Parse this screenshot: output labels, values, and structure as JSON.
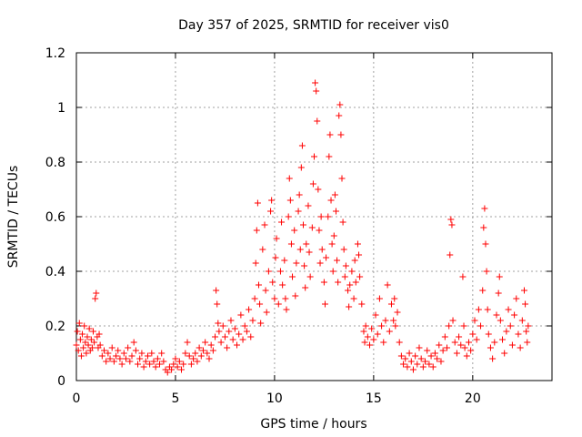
{
  "chart_data": {
    "type": "scatter",
    "title": "Day 357 of 2025, SRMTID for receiver vis0",
    "xlabel": "GPS time / hours",
    "ylabel": "SRMTID / TECUs",
    "xlim": [
      0,
      24
    ],
    "ylim": [
      0,
      1.2
    ],
    "xticks": [
      0,
      5,
      10,
      15,
      20
    ],
    "xtick_labels": [
      "0",
      "5",
      "10",
      "15",
      "20"
    ],
    "yticks": [
      0,
      0.2,
      0.4,
      0.6,
      0.8,
      1,
      1.2
    ],
    "ytick_labels": [
      "0",
      "0.2",
      "0.4",
      "0.6",
      "0.8",
      "1",
      "1.2"
    ],
    "grid": true,
    "marker": "+",
    "marker_color": "#ff0000",
    "series": [
      {
        "name": "SRMTID",
        "points": [
          [
            0.0,
            0.13
          ],
          [
            0.05,
            0.18
          ],
          [
            0.1,
            0.11
          ],
          [
            0.15,
            0.21
          ],
          [
            0.2,
            0.15
          ],
          [
            0.25,
            0.09
          ],
          [
            0.3,
            0.17
          ],
          [
            0.35,
            0.12
          ],
          [
            0.4,
            0.2
          ],
          [
            0.45,
            0.14
          ],
          [
            0.5,
            0.1
          ],
          [
            0.55,
            0.16
          ],
          [
            0.6,
            0.13
          ],
          [
            0.65,
            0.19
          ],
          [
            0.7,
            0.11
          ],
          [
            0.75,
            0.15
          ],
          [
            0.8,
            0.12
          ],
          [
            0.85,
            0.18
          ],
          [
            0.9,
            0.14
          ],
          [
            0.95,
            0.3
          ],
          [
            1.0,
            0.32
          ],
          [
            1.05,
            0.16
          ],
          [
            1.1,
            0.12
          ],
          [
            1.15,
            0.17
          ],
          [
            1.2,
            0.13
          ],
          [
            1.3,
            0.09
          ],
          [
            1.4,
            0.11
          ],
          [
            1.5,
            0.07
          ],
          [
            1.6,
            0.1
          ],
          [
            1.7,
            0.08
          ],
          [
            1.8,
            0.12
          ],
          [
            1.9,
            0.07
          ],
          [
            2.0,
            0.09
          ],
          [
            2.1,
            0.11
          ],
          [
            2.2,
            0.08
          ],
          [
            2.3,
            0.06
          ],
          [
            2.4,
            0.1
          ],
          [
            2.5,
            0.08
          ],
          [
            2.6,
            0.12
          ],
          [
            2.7,
            0.07
          ],
          [
            2.8,
            0.09
          ],
          [
            2.9,
            0.14
          ],
          [
            3.0,
            0.11
          ],
          [
            3.1,
            0.06
          ],
          [
            3.2,
            0.08
          ],
          [
            3.3,
            0.1
          ],
          [
            3.4,
            0.05
          ],
          [
            3.5,
            0.07
          ],
          [
            3.6,
            0.09
          ],
          [
            3.7,
            0.06
          ],
          [
            3.8,
            0.1
          ],
          [
            3.9,
            0.07
          ],
          [
            4.0,
            0.05
          ],
          [
            4.1,
            0.08
          ],
          [
            4.2,
            0.06
          ],
          [
            4.3,
            0.1
          ],
          [
            4.4,
            0.07
          ],
          [
            4.5,
            0.04
          ],
          [
            4.6,
            0.03
          ],
          [
            4.7,
            0.05
          ],
          [
            4.8,
            0.04
          ],
          [
            4.9,
            0.06
          ],
          [
            5.0,
            0.08
          ],
          [
            5.1,
            0.05
          ],
          [
            5.2,
            0.07
          ],
          [
            5.3,
            0.04
          ],
          [
            5.4,
            0.06
          ],
          [
            5.5,
            0.1
          ],
          [
            5.6,
            0.14
          ],
          [
            5.7,
            0.09
          ],
          [
            5.8,
            0.06
          ],
          [
            5.9,
            0.08
          ],
          [
            6.0,
            0.1
          ],
          [
            6.1,
            0.07
          ],
          [
            6.2,
            0.12
          ],
          [
            6.3,
            0.09
          ],
          [
            6.4,
            0.11
          ],
          [
            6.5,
            0.14
          ],
          [
            6.6,
            0.1
          ],
          [
            6.7,
            0.08
          ],
          [
            6.8,
            0.13
          ],
          [
            6.9,
            0.11
          ],
          [
            7.0,
            0.16
          ],
          [
            7.05,
            0.33
          ],
          [
            7.1,
            0.28
          ],
          [
            7.15,
            0.21
          ],
          [
            7.2,
            0.18
          ],
          [
            7.3,
            0.14
          ],
          [
            7.4,
            0.2
          ],
          [
            7.5,
            0.16
          ],
          [
            7.6,
            0.12
          ],
          [
            7.7,
            0.18
          ],
          [
            7.8,
            0.22
          ],
          [
            7.9,
            0.15
          ],
          [
            8.0,
            0.19
          ],
          [
            8.1,
            0.13
          ],
          [
            8.2,
            0.17
          ],
          [
            8.3,
            0.24
          ],
          [
            8.4,
            0.15
          ],
          [
            8.5,
            0.2
          ],
          [
            8.6,
            0.18
          ],
          [
            8.7,
            0.26
          ],
          [
            8.8,
            0.16
          ],
          [
            8.9,
            0.22
          ],
          [
            9.0,
            0.3
          ],
          [
            9.05,
            0.43
          ],
          [
            9.1,
            0.55
          ],
          [
            9.15,
            0.65
          ],
          [
            9.2,
            0.35
          ],
          [
            9.25,
            0.28
          ],
          [
            9.3,
            0.21
          ],
          [
            9.4,
            0.48
          ],
          [
            9.5,
            0.57
          ],
          [
            9.55,
            0.33
          ],
          [
            9.6,
            0.25
          ],
          [
            9.7,
            0.4
          ],
          [
            9.8,
            0.62
          ],
          [
            9.85,
            0.66
          ],
          [
            9.9,
            0.36
          ],
          [
            10.0,
            0.3
          ],
          [
            10.05,
            0.45
          ],
          [
            10.1,
            0.52
          ],
          [
            10.2,
            0.28
          ],
          [
            10.3,
            0.4
          ],
          [
            10.35,
            0.58
          ],
          [
            10.4,
            0.35
          ],
          [
            10.5,
            0.44
          ],
          [
            10.55,
            0.3
          ],
          [
            10.6,
            0.26
          ],
          [
            10.7,
            0.6
          ],
          [
            10.75,
            0.74
          ],
          [
            10.8,
            0.66
          ],
          [
            10.85,
            0.5
          ],
          [
            10.9,
            0.38
          ],
          [
            11.0,
            0.55
          ],
          [
            11.05,
            0.31
          ],
          [
            11.1,
            0.43
          ],
          [
            11.2,
            0.62
          ],
          [
            11.25,
            0.68
          ],
          [
            11.3,
            0.48
          ],
          [
            11.35,
            0.78
          ],
          [
            11.4,
            0.86
          ],
          [
            11.45,
            0.57
          ],
          [
            11.5,
            0.42
          ],
          [
            11.55,
            0.34
          ],
          [
            11.6,
            0.5
          ],
          [
            11.7,
            0.64
          ],
          [
            11.75,
            0.47
          ],
          [
            11.8,
            0.38
          ],
          [
            11.9,
            0.56
          ],
          [
            11.95,
            0.72
          ],
          [
            12.0,
            0.82
          ],
          [
            12.05,
            1.09
          ],
          [
            12.1,
            1.06
          ],
          [
            12.15,
            0.95
          ],
          [
            12.2,
            0.7
          ],
          [
            12.25,
            0.55
          ],
          [
            12.3,
            0.43
          ],
          [
            12.35,
            0.6
          ],
          [
            12.4,
            0.48
          ],
          [
            12.5,
            0.36
          ],
          [
            12.55,
            0.28
          ],
          [
            12.6,
            0.45
          ],
          [
            12.7,
            0.6
          ],
          [
            12.75,
            0.82
          ],
          [
            12.8,
            0.9
          ],
          [
            12.85,
            0.66
          ],
          [
            12.9,
            0.5
          ],
          [
            12.95,
            0.4
          ],
          [
            13.0,
            0.53
          ],
          [
            13.05,
            0.68
          ],
          [
            13.1,
            0.62
          ],
          [
            13.15,
            0.44
          ],
          [
            13.2,
            0.36
          ],
          [
            13.25,
            0.97
          ],
          [
            13.3,
            1.01
          ],
          [
            13.35,
            0.9
          ],
          [
            13.4,
            0.74
          ],
          [
            13.45,
            0.58
          ],
          [
            13.5,
            0.48
          ],
          [
            13.55,
            0.38
          ],
          [
            13.6,
            0.42
          ],
          [
            13.7,
            0.33
          ],
          [
            13.75,
            0.27
          ],
          [
            13.8,
            0.35
          ],
          [
            13.9,
            0.4
          ],
          [
            14.0,
            0.3
          ],
          [
            14.05,
            0.44
          ],
          [
            14.1,
            0.36
          ],
          [
            14.2,
            0.5
          ],
          [
            14.25,
            0.46
          ],
          [
            14.3,
            0.38
          ],
          [
            14.4,
            0.28
          ],
          [
            14.5,
            0.18
          ],
          [
            14.55,
            0.14
          ],
          [
            14.6,
            0.2
          ],
          [
            14.7,
            0.16
          ],
          [
            14.8,
            0.13
          ],
          [
            14.9,
            0.19
          ],
          [
            15.0,
            0.15
          ],
          [
            15.1,
            0.24
          ],
          [
            15.2,
            0.17
          ],
          [
            15.3,
            0.3
          ],
          [
            15.4,
            0.2
          ],
          [
            15.5,
            0.14
          ],
          [
            15.6,
            0.22
          ],
          [
            15.7,
            0.35
          ],
          [
            15.8,
            0.18
          ],
          [
            15.9,
            0.28
          ],
          [
            16.0,
            0.22
          ],
          [
            16.05,
            0.3
          ],
          [
            16.1,
            0.2
          ],
          [
            16.2,
            0.25
          ],
          [
            16.3,
            0.14
          ],
          [
            16.4,
            0.09
          ],
          [
            16.5,
            0.06
          ],
          [
            16.6,
            0.08
          ],
          [
            16.7,
            0.05
          ],
          [
            16.8,
            0.1
          ],
          [
            16.9,
            0.07
          ],
          [
            17.0,
            0.04
          ],
          [
            17.1,
            0.09
          ],
          [
            17.2,
            0.06
          ],
          [
            17.3,
            0.12
          ],
          [
            17.4,
            0.08
          ],
          [
            17.5,
            0.05
          ],
          [
            17.6,
            0.07
          ],
          [
            17.7,
            0.11
          ],
          [
            17.8,
            0.06
          ],
          [
            17.9,
            0.09
          ],
          [
            18.0,
            0.05
          ],
          [
            18.1,
            0.1
          ],
          [
            18.2,
            0.08
          ],
          [
            18.3,
            0.13
          ],
          [
            18.4,
            0.07
          ],
          [
            18.5,
            0.11
          ],
          [
            18.6,
            0.16
          ],
          [
            18.7,
            0.12
          ],
          [
            18.8,
            0.2
          ],
          [
            18.85,
            0.46
          ],
          [
            18.9,
            0.59
          ],
          [
            18.95,
            0.57
          ],
          [
            19.0,
            0.22
          ],
          [
            19.1,
            0.14
          ],
          [
            19.2,
            0.1
          ],
          [
            19.3,
            0.16
          ],
          [
            19.4,
            0.13
          ],
          [
            19.5,
            0.38
          ],
          [
            19.55,
            0.2
          ],
          [
            19.6,
            0.12
          ],
          [
            19.7,
            0.09
          ],
          [
            19.8,
            0.14
          ],
          [
            19.9,
            0.11
          ],
          [
            20.0,
            0.17
          ],
          [
            20.1,
            0.22
          ],
          [
            20.2,
            0.15
          ],
          [
            20.3,
            0.26
          ],
          [
            20.4,
            0.2
          ],
          [
            20.5,
            0.33
          ],
          [
            20.55,
            0.56
          ],
          [
            20.6,
            0.63
          ],
          [
            20.65,
            0.5
          ],
          [
            20.7,
            0.4
          ],
          [
            20.75,
            0.26
          ],
          [
            20.8,
            0.17
          ],
          [
            20.9,
            0.12
          ],
          [
            21.0,
            0.08
          ],
          [
            21.1,
            0.14
          ],
          [
            21.2,
            0.24
          ],
          [
            21.3,
            0.32
          ],
          [
            21.35,
            0.38
          ],
          [
            21.4,
            0.22
          ],
          [
            21.5,
            0.15
          ],
          [
            21.6,
            0.1
          ],
          [
            21.7,
            0.18
          ],
          [
            21.8,
            0.26
          ],
          [
            21.9,
            0.2
          ],
          [
            22.0,
            0.13
          ],
          [
            22.1,
            0.24
          ],
          [
            22.2,
            0.3
          ],
          [
            22.3,
            0.17
          ],
          [
            22.4,
            0.12
          ],
          [
            22.5,
            0.22
          ],
          [
            22.6,
            0.33
          ],
          [
            22.65,
            0.28
          ],
          [
            22.7,
            0.18
          ],
          [
            22.75,
            0.14
          ],
          [
            22.8,
            0.2
          ]
        ]
      }
    ]
  }
}
